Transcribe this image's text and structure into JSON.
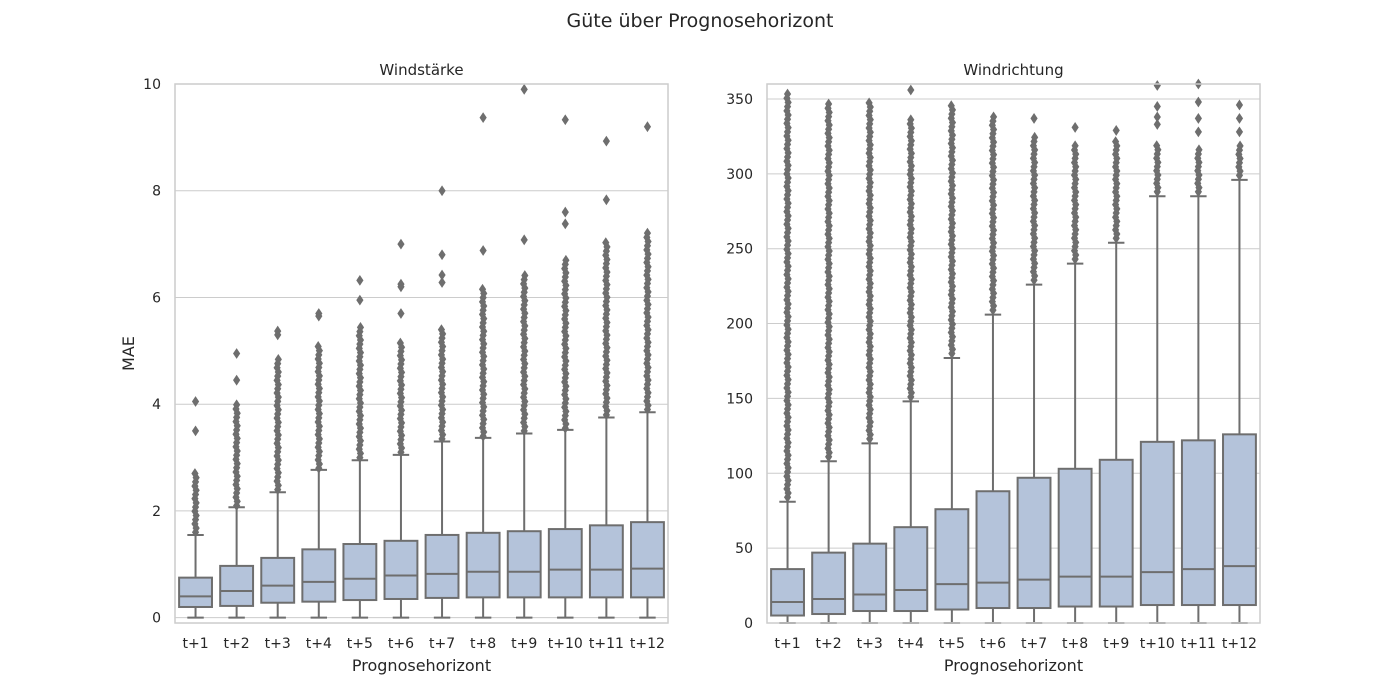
{
  "figure_title": "Güte über Prognosehorizont",
  "colors": {
    "box_fill": "#b4c3da",
    "box_edge": "#6e6e6e",
    "grid": "#cccccc",
    "frame": "#cccccc",
    "text": "#262626"
  },
  "chart_data": [
    {
      "type": "box",
      "title": "Windstärke",
      "xlabel": "Prognosehorizont",
      "ylabel": "MAE",
      "ylim": [
        -0.1,
        10
      ],
      "yticks": [
        0,
        2,
        4,
        6,
        8,
        10
      ],
      "grid": true,
      "categories": [
        "t+1",
        "t+2",
        "t+3",
        "t+4",
        "t+5",
        "t+6",
        "t+7",
        "t+8",
        "t+9",
        "t+10",
        "t+11",
        "t+12"
      ],
      "boxes": [
        {
          "whislo": 0,
          "q1": 0.2,
          "med": 0.4,
          "q3": 0.75,
          "whishi": 1.55,
          "outlier_range": [
            1.6,
            2.75
          ],
          "fliers": [
            3.5,
            4.05
          ]
        },
        {
          "whislo": 0,
          "q1": 0.22,
          "med": 0.5,
          "q3": 0.97,
          "whishi": 2.07,
          "outlier_range": [
            2.1,
            4.0
          ],
          "fliers": [
            4.45,
            4.95
          ]
        },
        {
          "whislo": 0,
          "q1": 0.28,
          "med": 0.6,
          "q3": 1.12,
          "whishi": 2.35,
          "outlier_range": [
            2.4,
            4.85
          ],
          "fliers": [
            5.3,
            5.37
          ]
        },
        {
          "whislo": 0,
          "q1": 0.3,
          "med": 0.67,
          "q3": 1.28,
          "whishi": 2.77,
          "outlier_range": [
            2.8,
            5.1
          ],
          "fliers": [
            5.65,
            5.7
          ]
        },
        {
          "whislo": 0,
          "q1": 0.33,
          "med": 0.73,
          "q3": 1.38,
          "whishi": 2.95,
          "outlier_range": [
            3.0,
            5.45
          ],
          "fliers": [
            5.95,
            6.32
          ]
        },
        {
          "whislo": 0,
          "q1": 0.35,
          "med": 0.79,
          "q3": 1.44,
          "whishi": 3.05,
          "outlier_range": [
            3.1,
            5.15
          ],
          "fliers": [
            5.7,
            6.2,
            6.25,
            7.0
          ]
        },
        {
          "whislo": 0,
          "q1": 0.37,
          "med": 0.82,
          "q3": 1.55,
          "whishi": 3.3,
          "outlier_range": [
            3.35,
            5.45
          ],
          "fliers": [
            6.28,
            6.42,
            6.8,
            8.0
          ]
        },
        {
          "whislo": 0,
          "q1": 0.38,
          "med": 0.86,
          "q3": 1.59,
          "whishi": 3.37,
          "outlier_range": [
            3.4,
            6.22
          ],
          "fliers": [
            6.88,
            9.37
          ]
        },
        {
          "whislo": 0,
          "q1": 0.38,
          "med": 0.86,
          "q3": 1.62,
          "whishi": 3.45,
          "outlier_range": [
            3.5,
            6.45
          ],
          "fliers": [
            7.08,
            9.9
          ]
        },
        {
          "whislo": 0,
          "q1": 0.38,
          "med": 0.9,
          "q3": 1.66,
          "whishi": 3.52,
          "outlier_range": [
            3.55,
            6.7
          ],
          "fliers": [
            7.38,
            7.6,
            9.33
          ]
        },
        {
          "whislo": 0,
          "q1": 0.38,
          "med": 0.9,
          "q3": 1.73,
          "whishi": 3.75,
          "outlier_range": [
            3.8,
            7.08
          ],
          "fliers": [
            7.83,
            8.93
          ]
        },
        {
          "whislo": 0,
          "q1": 0.38,
          "med": 0.92,
          "q3": 1.79,
          "whishi": 3.85,
          "outlier_range": [
            3.9,
            7.22
          ],
          "fliers": [
            9.2
          ]
        }
      ]
    },
    {
      "type": "box",
      "title": "Windrichtung",
      "xlabel": "Prognosehorizont",
      "ylabel": "",
      "ylim": [
        0,
        360
      ],
      "yticks": [
        0,
        50,
        100,
        150,
        200,
        250,
        300,
        350
      ],
      "grid": true,
      "categories": [
        "t+1",
        "t+2",
        "t+3",
        "t+4",
        "t+5",
        "t+6",
        "t+7",
        "t+8",
        "t+9",
        "t+10",
        "t+11",
        "t+12"
      ],
      "boxes": [
        {
          "whislo": 0,
          "q1": 5,
          "med": 14,
          "q3": 36,
          "whishi": 81,
          "outlier_range": [
            84,
            354
          ],
          "fliers": []
        },
        {
          "whislo": 0,
          "q1": 6,
          "med": 16,
          "q3": 47,
          "whishi": 108,
          "outlier_range": [
            111,
            349
          ],
          "fliers": []
        },
        {
          "whislo": 0,
          "q1": 8,
          "med": 19,
          "q3": 53,
          "whishi": 120,
          "outlier_range": [
            123,
            350
          ],
          "fliers": []
        },
        {
          "whislo": 0,
          "q1": 8,
          "med": 22,
          "q3": 64,
          "whishi": 148,
          "outlier_range": [
            151,
            337
          ],
          "fliers": [
            356
          ]
        },
        {
          "whislo": 0,
          "q1": 9,
          "med": 26,
          "q3": 76,
          "whishi": 177,
          "outlier_range": [
            180,
            347
          ],
          "fliers": []
        },
        {
          "whislo": 0,
          "q1": 10,
          "med": 27,
          "q3": 88,
          "whishi": 206,
          "outlier_range": [
            209,
            338
          ],
          "fliers": []
        },
        {
          "whislo": 0,
          "q1": 10,
          "med": 29,
          "q3": 97,
          "whishi": 226,
          "outlier_range": [
            229,
            325
          ],
          "fliers": [
            337
          ]
        },
        {
          "whislo": 0,
          "q1": 11,
          "med": 31,
          "q3": 103,
          "whishi": 240,
          "outlier_range": [
            243,
            320
          ],
          "fliers": [
            331
          ]
        },
        {
          "whislo": 0,
          "q1": 11,
          "med": 31,
          "q3": 109,
          "whishi": 254,
          "outlier_range": [
            257,
            322
          ],
          "fliers": [
            329
          ]
        },
        {
          "whislo": 0,
          "q1": 12,
          "med": 34,
          "q3": 121,
          "whishi": 285,
          "outlier_range": [
            288,
            321
          ],
          "fliers": [
            333,
            338,
            345,
            359
          ]
        },
        {
          "whislo": 0,
          "q1": 12,
          "med": 36,
          "q3": 122,
          "whishi": 285,
          "outlier_range": [
            288,
            318
          ],
          "fliers": [
            328,
            337,
            348,
            360
          ]
        },
        {
          "whislo": 0,
          "q1": 12,
          "med": 38,
          "q3": 126,
          "whishi": 296,
          "outlier_range": [
            299,
            320
          ],
          "fliers": [
            328,
            337,
            346
          ]
        }
      ]
    }
  ]
}
